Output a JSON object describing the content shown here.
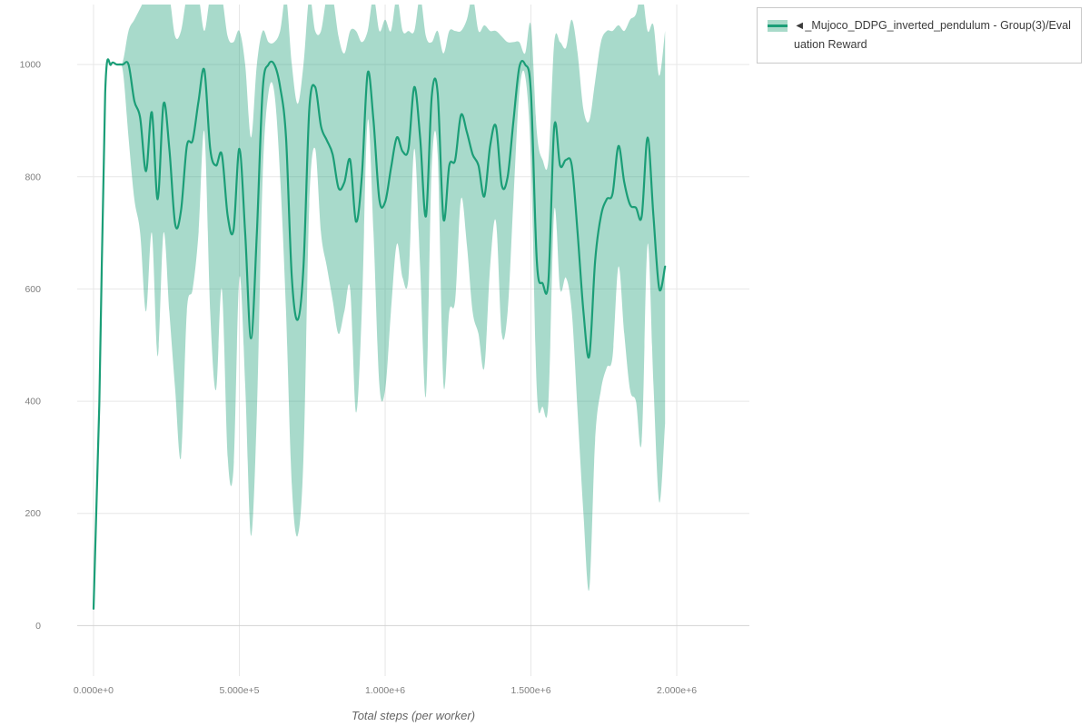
{
  "legend": {
    "label": "◄_Mujoco_DDPG_inverted_pendulum - Group(3)/Evaluation Reward"
  },
  "chart_data": {
    "type": "line",
    "title": "",
    "xlabel": "Total steps (per worker)",
    "ylabel": "",
    "xlim": [
      -56000,
      2249000
    ],
    "ylim": [
      -90,
      1107
    ],
    "grid": true,
    "legend_position": "top-right",
    "line_color": "#1b9e77",
    "band_color": "#1b9e77",
    "band_opacity": 0.38,
    "x_ticks": [
      {
        "value": 0,
        "label": "0.000e+0"
      },
      {
        "value": 500000,
        "label": "5.000e+5"
      },
      {
        "value": 1000000,
        "label": "1.000e+6"
      },
      {
        "value": 1500000,
        "label": "1.500e+6"
      },
      {
        "value": 2000000,
        "label": "2.000e+6"
      }
    ],
    "y_ticks": [
      {
        "value": 0,
        "label": "0"
      },
      {
        "value": 200,
        "label": "200"
      },
      {
        "value": 400,
        "label": "400"
      },
      {
        "value": 600,
        "label": "600"
      },
      {
        "value": 800,
        "label": "800"
      },
      {
        "value": 1000,
        "label": "1000"
      }
    ],
    "series": [
      {
        "name": "_Mujoco_DDPG_inverted_pendulum - Group(3)/Evaluation Reward",
        "x_start": 0,
        "x_step": 20000,
        "mean": [
          30,
          400,
          950,
          1000,
          1000,
          1000,
          1000,
          935,
          905,
          810,
          915,
          760,
          930,
          850,
          715,
          740,
          855,
          865,
          935,
          990,
          850,
          820,
          840,
          730,
          705,
          850,
          700,
          512,
          700,
          955,
          1000,
          1000,
          960,
          870,
          620,
          545,
          640,
          920,
          960,
          890,
          865,
          840,
          780,
          790,
          830,
          720,
          800,
          985,
          900,
          760,
          755,
          815,
          870,
          845,
          850,
          960,
          870,
          730,
          945,
          950,
          725,
          820,
          830,
          910,
          880,
          840,
          820,
          765,
          855,
          890,
          785,
          800,
          900,
          995,
          1000,
          950,
          650,
          610,
          615,
          890,
          820,
          830,
          820,
          700,
          560,
          480,
          650,
          730,
          760,
          770,
          855,
          790,
          750,
          745,
          730,
          870,
          730,
          600,
          640
        ],
        "lower": [
          30,
          400,
          950,
          1000,
          1000,
          990,
          870,
          760,
          700,
          560,
          700,
          480,
          700,
          560,
          420,
          300,
          560,
          600,
          700,
          880,
          560,
          420,
          600,
          300,
          280,
          620,
          430,
          160,
          380,
          800,
          950,
          950,
          800,
          560,
          250,
          160,
          300,
          750,
          850,
          700,
          640,
          580,
          520,
          560,
          600,
          380,
          560,
          900,
          700,
          430,
          420,
          560,
          680,
          620,
          620,
          850,
          640,
          410,
          820,
          840,
          430,
          560,
          580,
          760,
          680,
          560,
          520,
          460,
          640,
          720,
          520,
          560,
          760,
          950,
          980,
          830,
          420,
          390,
          400,
          740,
          600,
          620,
          560,
          380,
          200,
          65,
          330,
          420,
          460,
          480,
          640,
          520,
          420,
          400,
          330,
          680,
          430,
          220,
          360
        ],
        "upper": [
          30,
          400,
          950,
          1000,
          1000,
          1005,
          1060,
          1080,
          1100,
          1120,
          1120,
          1120,
          1120,
          1120,
          1050,
          1060,
          1120,
          1120,
          1120,
          1060,
          1120,
          1120,
          1120,
          1050,
          1040,
          1060,
          1000,
          870,
          1000,
          1060,
          1040,
          1040,
          1060,
          1120,
          1000,
          930,
          1000,
          1120,
          1060,
          1060,
          1120,
          1120,
          1050,
          1020,
          1060,
          1060,
          1040,
          1060,
          1120,
          1060,
          1080,
          1060,
          1120,
          1060,
          1060,
          1060,
          1120,
          1050,
          1040,
          1060,
          1020,
          1060,
          1060,
          1060,
          1080,
          1120,
          1060,
          1070,
          1060,
          1060,
          1050,
          1040,
          1040,
          1040,
          1020,
          1070,
          880,
          830,
          830,
          1040,
          1040,
          1030,
          1080,
          1020,
          920,
          900,
          970,
          1040,
          1060,
          1060,
          1070,
          1060,
          1080,
          1090,
          1130,
          1060,
          1070,
          980,
          1060
        ]
      }
    ]
  }
}
